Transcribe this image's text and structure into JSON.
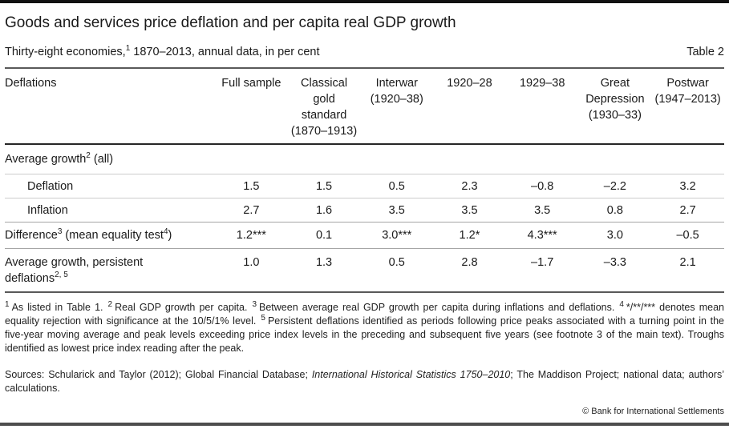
{
  "page": {
    "title": "Goods and services price deflation and per capita real GDP growth",
    "subtitle": {
      "pre": "Thirty-eight economies,",
      "sup": "1",
      "post": " 1870–2013, annual data, in per cent"
    },
    "table_label": "Table 2",
    "copyright": "© Bank for International Settlements"
  },
  "table": {
    "header_first": "Deflations",
    "columns": [
      "Full sample",
      "Classical gold standard (1870–1913)",
      "Interwar (1920–38)",
      "1920–28",
      "1929–38",
      "Great Depression (1930–33)",
      "Postwar (1947–2013)"
    ],
    "section": {
      "pre": "Average growth",
      "sup": "2",
      "post": " (all)"
    },
    "rows": [
      {
        "label": "Deflation",
        "values": [
          "1.5",
          "1.5",
          "0.5",
          "2.3",
          "–0.8",
          "–2.2",
          "3.2"
        ]
      },
      {
        "label": "Inflation",
        "values": [
          "2.7",
          "1.6",
          "3.5",
          "3.5",
          "3.5",
          "0.8",
          "2.7"
        ]
      },
      {
        "label_pre": "Difference",
        "label_sup1": "3",
        "label_mid": " (mean equality test",
        "label_sup2": "4",
        "label_post": ")",
        "values": [
          "1.2***",
          "0.1",
          "3.0***",
          "1.2*",
          "4.3***",
          "3.0",
          "–0.5"
        ]
      },
      {
        "label_line1": "Average growth, persistent",
        "label_line2": "deflations",
        "label_sup": "2, 5",
        "values": [
          "1.0",
          "1.3",
          "0.5",
          "2.8",
          "–1.7",
          "–3.3",
          "2.1"
        ]
      }
    ]
  },
  "footnotes": {
    "items": [
      {
        "sup": "1",
        "text": "As listed in Table 1."
      },
      {
        "sup": "2",
        "text": "Real GDP growth per capita."
      },
      {
        "sup": "3",
        "text": "Between average real GDP growth per capita during inflations and deflations."
      },
      {
        "sup": "4",
        "text": "*/**/*** denotes mean equality rejection with significance at the 10/5/1% level."
      },
      {
        "sup": "5",
        "text": "Persistent deflations identified as periods following price peaks associated with a turning point in the five-year moving average and peak levels exceeding price index levels in the preceding and subsequent five years (see footnote 3 of the main text). Troughs identified as lowest price index reading after the peak."
      }
    ],
    "sources_pre": "Sources: Schularick and Taylor (2012); Global Financial Database; ",
    "sources_italic": "International Historical Statistics 1750–2010",
    "sources_post": "; The Maddison Project; national data; authors’ calculations."
  }
}
